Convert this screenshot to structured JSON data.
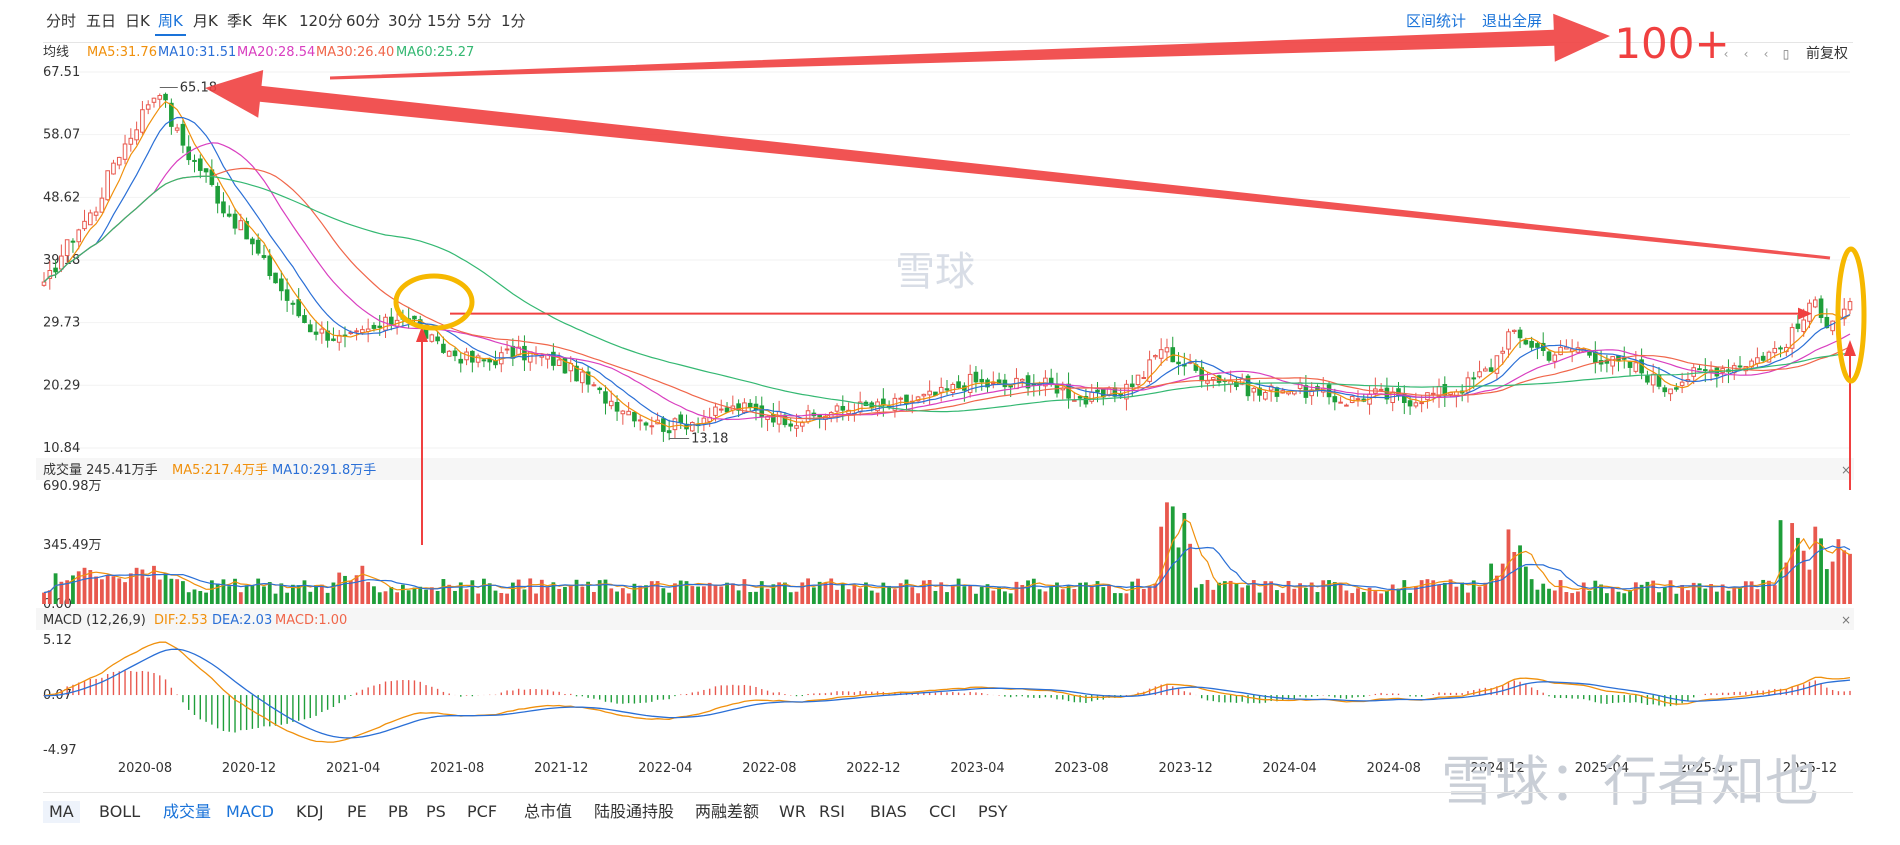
{
  "period_tabs": [
    "分时",
    "五日",
    "日K",
    "周K",
    "月K",
    "季K",
    "年K",
    "120分",
    "60分",
    "30分",
    "15分",
    "5分",
    "1分"
  ],
  "active_period": "周K",
  "toolbar_right": {
    "interval_stats": "区间统计",
    "exit_fullscreen": "退出全屏",
    "adjust": "前复权"
  },
  "watermark": "雪球",
  "footer_watermark": "雪球：行者知也",
  "indicator_tabs": [
    "MA",
    "BOLL",
    "成交量",
    "MACD",
    "KDJ",
    "PE",
    "PB",
    "PS",
    "PCF",
    "总市值",
    "陆股通持股",
    "两融差额",
    "WR",
    "RSI",
    "BIAS",
    "CCI",
    "PSY"
  ],
  "active_indicators": [
    "成交量",
    "MACD"
  ],
  "colors": {
    "up": "#e8584e",
    "down": "#1f9e3a",
    "ma5": "#f0900c",
    "ma10": "#2a6fd6",
    "ma20": "#d93fc0",
    "ma30": "#f0664a",
    "ma60": "#34b872",
    "annot_red": "#f04040",
    "annot_yellow": "#f6b800",
    "accent": "#1a73d9"
  },
  "chart_data": [
    {
      "type": "candlestick",
      "name": "price",
      "legend_prefix": "均线",
      "ma_legend": [
        {
          "label": "MA5:31.76",
          "key": "ma5"
        },
        {
          "label": "MA10:31.51",
          "key": "ma10"
        },
        {
          "label": "MA20:28.54",
          "key": "ma20"
        },
        {
          "label": "MA30:26.40",
          "key": "ma30"
        },
        {
          "label": "MA60:25.27",
          "key": "ma60"
        }
      ],
      "y_ticks": [
        "67.51",
        "58.07",
        "48.62",
        "39.18",
        "29.73",
        "20.29",
        "10.84"
      ],
      "ylim": [
        10.84,
        67.51
      ],
      "x_ticks": [
        "2020-08",
        "2020-12",
        "2021-04",
        "2021-08",
        "2021-12",
        "2022-04",
        "2022-08",
        "2022-12",
        "2023-04",
        "2023-08",
        "2023-12",
        "2024-04",
        "2024-08",
        "2024-12",
        "2025-04",
        "2025-08",
        "2025-12"
      ],
      "annotations": {
        "high": "65.18",
        "low": "13.18",
        "big_label": "100+"
      },
      "anchors": [
        [
          0,
          35
        ],
        [
          3,
          40
        ],
        [
          6,
          44
        ],
        [
          9,
          47
        ],
        [
          12,
          54
        ],
        [
          15,
          58
        ],
        [
          18,
          63
        ],
        [
          20,
          65
        ],
        [
          22,
          60
        ],
        [
          25,
          55
        ],
        [
          28,
          52
        ],
        [
          31,
          47
        ],
        [
          34,
          44
        ],
        [
          37,
          40
        ],
        [
          40,
          36
        ],
        [
          43,
          32
        ],
        [
          46,
          29
        ],
        [
          49,
          28
        ],
        [
          52,
          27
        ],
        [
          55,
          28
        ],
        [
          58,
          29
        ],
        [
          60,
          30
        ],
        [
          62,
          31
        ],
        [
          64,
          30
        ],
        [
          66,
          28
        ],
        [
          68,
          26
        ],
        [
          71,
          25
        ],
        [
          74,
          24
        ],
        [
          77,
          24
        ],
        [
          80,
          25
        ],
        [
          84,
          25
        ],
        [
          88,
          24
        ],
        [
          92,
          22
        ],
        [
          96,
          19
        ],
        [
          100,
          17
        ],
        [
          104,
          15
        ],
        [
          108,
          14
        ],
        [
          112,
          15
        ],
        [
          116,
          16
        ],
        [
          120,
          17
        ],
        [
          125,
          16
        ],
        [
          130,
          15
        ],
        [
          135,
          16
        ],
        [
          140,
          17
        ],
        [
          145,
          17
        ],
        [
          150,
          18
        ],
        [
          155,
          19
        ],
        [
          160,
          21
        ],
        [
          165,
          20
        ],
        [
          170,
          21
        ],
        [
          175,
          20
        ],
        [
          180,
          18
        ],
        [
          185,
          19
        ],
        [
          190,
          22
        ],
        [
          193,
          26
        ],
        [
          196,
          24
        ],
        [
          200,
          22
        ],
        [
          205,
          21
        ],
        [
          210,
          19
        ],
        [
          215,
          20
        ],
        [
          220,
          19
        ],
        [
          225,
          18
        ],
        [
          230,
          19
        ],
        [
          235,
          18
        ],
        [
          240,
          19
        ],
        [
          245,
          20
        ],
        [
          250,
          23
        ],
        [
          253,
          28
        ],
        [
          256,
          27
        ],
        [
          260,
          25
        ],
        [
          265,
          26
        ],
        [
          270,
          24
        ],
        [
          275,
          23
        ],
        [
          280,
          20
        ],
        [
          285,
          22
        ],
        [
          290,
          23
        ],
        [
          295,
          24
        ],
        [
          300,
          26
        ],
        [
          303,
          29
        ],
        [
          306,
          33
        ],
        [
          308,
          30
        ],
        [
          310,
          31
        ],
        [
          312,
          32
        ]
      ]
    },
    {
      "type": "bar",
      "name": "volume",
      "legend": [
        {
          "label": "成交量 245.41万手",
          "key": "text"
        },
        {
          "label": "MA5:217.4万手",
          "key": "ma5"
        },
        {
          "label": "MA10:291.8万手",
          "key": "ma10"
        }
      ],
      "y_ticks": [
        "690.98万",
        "345.49万",
        "0.00"
      ],
      "ylim": [
        0,
        690.98
      ]
    },
    {
      "type": "macd",
      "name": "macd",
      "legend": [
        {
          "label": "MACD (12,26,9)",
          "key": "text"
        },
        {
          "label": "DIF:2.53",
          "key": "ma5"
        },
        {
          "label": "DEA:2.03",
          "key": "ma10"
        },
        {
          "label": "MACD:1.00",
          "key": "ma30"
        }
      ],
      "y_ticks": [
        "5.12",
        "0.07",
        "-4.97"
      ],
      "ylim": [
        -4.97,
        5.12
      ]
    }
  ]
}
